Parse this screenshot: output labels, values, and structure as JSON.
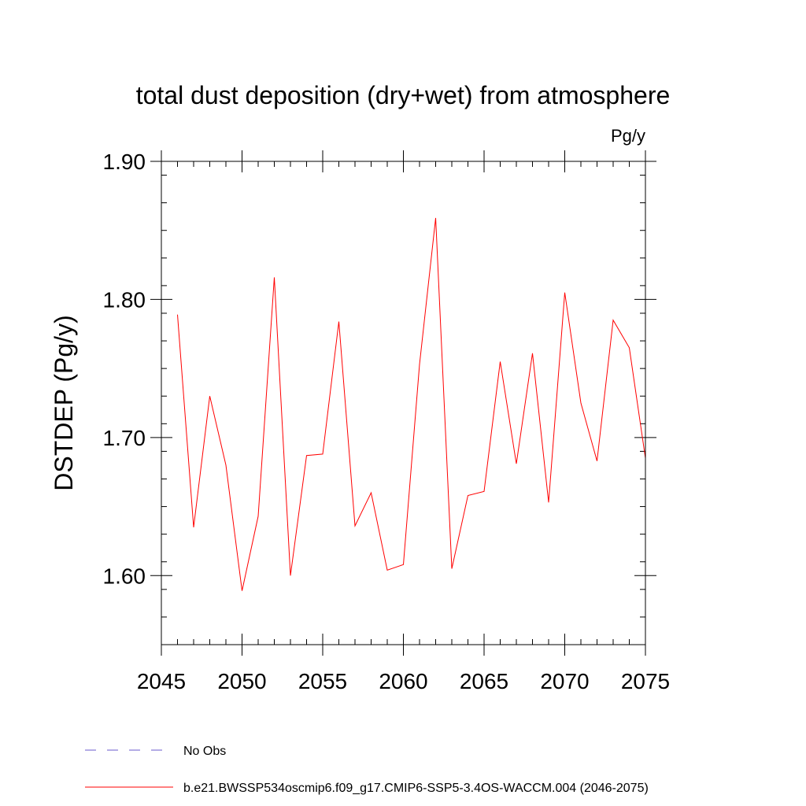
{
  "chart_data": {
    "type": "line",
    "title": "total dust deposition (dry+wet) from atmosphere",
    "units_label": "Pg/y",
    "xlabel": "",
    "ylabel": "DSTDEP  (Pg/y)",
    "xlim": [
      2045,
      2075
    ],
    "ylim": [
      1.55,
      1.9
    ],
    "x_ticks": [
      2045,
      2050,
      2055,
      2060,
      2065,
      2070,
      2075
    ],
    "x_tick_labels": [
      "2045",
      "2050",
      "2055",
      "2060",
      "2065",
      "2070",
      "2075"
    ],
    "y_ticks": [
      1.6,
      1.7,
      1.8,
      1.9
    ],
    "y_tick_labels": [
      "1.60",
      "1.70",
      "1.80",
      "1.90"
    ],
    "y_minor_step": 0.02,
    "x_minor_step": 1,
    "grid": false,
    "series": [
      {
        "name": "b.e21.BWSSP534oscmip6.f09_g17.CMIP6-SSP5-3.4OS-WACCM.004 (2046-2075)",
        "color": "#ff0000",
        "dash": "solid",
        "x": [
          2046,
          2047,
          2048,
          2049,
          2050,
          2051,
          2052,
          2053,
          2054,
          2055,
          2056,
          2057,
          2058,
          2059,
          2060,
          2061,
          2062,
          2063,
          2064,
          2065,
          2066,
          2067,
          2068,
          2069,
          2070,
          2071,
          2072,
          2073,
          2074,
          2075
        ],
        "values": [
          1.789,
          1.635,
          1.73,
          1.68,
          1.589,
          1.643,
          1.816,
          1.6,
          1.687,
          1.688,
          1.784,
          1.636,
          1.66,
          1.604,
          1.608,
          1.753,
          1.859,
          1.605,
          1.658,
          1.661,
          1.755,
          1.681,
          1.761,
          1.653,
          1.805,
          1.725,
          1.683,
          1.785,
          1.765,
          1.685
        ]
      }
    ],
    "legend": {
      "placement": "bottom-left",
      "entries": [
        {
          "label": "No Obs",
          "color": "#6a5acd",
          "dash": "dashed"
        },
        {
          "label": "b.e21.BWSSP534oscmip6.f09_g17.CMIP6-SSP5-3.4OS-WACCM.004 (2046-2075)",
          "color": "#ff0000",
          "dash": "solid"
        }
      ]
    }
  }
}
